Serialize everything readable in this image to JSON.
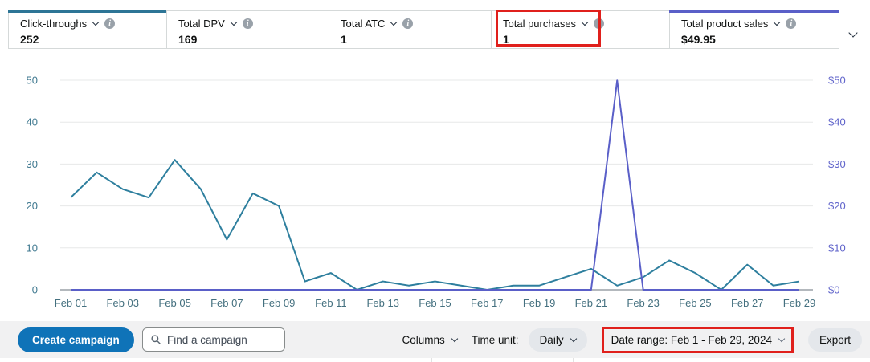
{
  "metric_cards": [
    {
      "label": "Click-throughs",
      "value": "252",
      "selected": true,
      "accent": "#2d7596"
    },
    {
      "label": "Total DPV",
      "value": "169",
      "selected": false
    },
    {
      "label": "Total ATC",
      "value": "1",
      "selected": false
    },
    {
      "label": "Total purchases",
      "value": "1",
      "selected": false,
      "annotated": true
    },
    {
      "label": "Total product sales",
      "value": "$49.95",
      "selected": true,
      "accent": "#5a5fc8"
    }
  ],
  "icons": {
    "info_glyph": "i"
  },
  "annotations": {
    "color": "#e0201c",
    "purchases_box": true,
    "date_range_box": true
  },
  "chart_data": {
    "type": "line",
    "title": "",
    "grid": true,
    "legend": "none",
    "x_labels": [
      "Feb 01",
      "Feb 02",
      "Feb 03",
      "Feb 04",
      "Feb 05",
      "Feb 06",
      "Feb 07",
      "Feb 08",
      "Feb 09",
      "Feb 10",
      "Feb 11",
      "Feb 12",
      "Feb 13",
      "Feb 14",
      "Feb 15",
      "Feb 16",
      "Feb 17",
      "Feb 18",
      "Feb 19",
      "Feb 20",
      "Feb 21",
      "Feb 22",
      "Feb 23",
      "Feb 24",
      "Feb 25",
      "Feb 26",
      "Feb 27",
      "Feb 28",
      "Feb 29"
    ],
    "x_tick_every": 2,
    "series": [
      {
        "name": "Click-throughs",
        "axis": "left",
        "color": "#2e7f9e",
        "values": [
          22,
          28,
          24,
          22,
          31,
          24,
          12,
          23,
          20,
          2,
          4,
          0,
          2,
          1,
          2,
          1,
          0,
          1,
          1,
          3,
          5,
          1,
          3,
          7,
          4,
          0,
          6,
          1,
          2
        ]
      },
      {
        "name": "Total product sales",
        "axis": "right",
        "color": "#5a5fc8",
        "values": [
          0,
          0,
          0,
          0,
          0,
          0,
          0,
          0,
          0,
          0,
          0,
          0,
          0,
          0,
          0,
          0,
          0,
          0,
          0,
          0,
          0,
          49.95,
          0,
          0,
          0,
          0,
          0,
          0,
          0
        ]
      }
    ],
    "left_axis": {
      "min": 0,
      "max": 50,
      "ticks": [
        0,
        10,
        20,
        30,
        40,
        50
      ],
      "tick_labels": [
        "0",
        "10",
        "20",
        "30",
        "40",
        "50"
      ],
      "color": "#3d7astyle"
    },
    "right_axis": {
      "min": 0,
      "max": 50,
      "tick_labels": [
        "$0",
        "$10",
        "$20",
        "$30",
        "$40",
        "$50"
      ],
      "color": "#6165cb"
    },
    "x_label_color": "#44707f",
    "gridline_color": "#e7e8e8",
    "axis_line_color": "#b3b8bd"
  },
  "toolbar": {
    "create_button": "Create campaign",
    "search_placeholder": "Find a campaign",
    "columns_label": "Columns",
    "time_unit_label": "Time unit:",
    "time_unit_value": "Daily",
    "date_range_label": "Date range: Feb 1 - Feb 29, 2024",
    "export_label": "Export"
  }
}
